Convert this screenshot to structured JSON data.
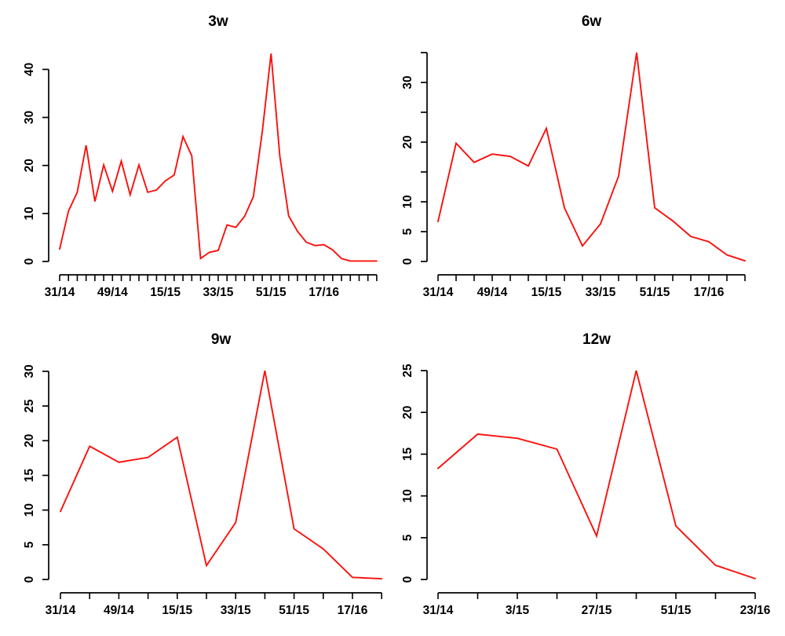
{
  "page": {
    "background": "#ffffff",
    "text_color": "#000000",
    "axis_color": "#000000"
  },
  "layout_hints": {
    "grid": "2x2",
    "gridlines": false,
    "legend": "none",
    "y_tick_labels_rotated": true
  },
  "chart_data": [
    {
      "type": "line",
      "title": "3w",
      "line_color": "#fb100c",
      "values": [
        2.6,
        10.5,
        14.4,
        24.2,
        12.5,
        20.1,
        14.6,
        20.9,
        13.9,
        20.1,
        14.4,
        14.9,
        16.8,
        18.0,
        26.0,
        22.0,
        0.6,
        1.9,
        2.3,
        7.6,
        7.1,
        9.4,
        13.5,
        27.0,
        43.3,
        21.9,
        9.5,
        6.3,
        4.0,
        3.3,
        3.5,
        2.4,
        0.6,
        0.1,
        0.1,
        0.1,
        0.1
      ],
      "x_axis": {
        "tick_count": 37,
        "labels": [
          {
            "at": 0,
            "text": "31/14"
          },
          {
            "at": 6,
            "text": "49/14"
          },
          {
            "at": 12,
            "text": "15/15"
          },
          {
            "at": 18,
            "text": "33/15"
          },
          {
            "at": 24,
            "text": "51/15"
          },
          {
            "at": 30,
            "text": "17/16"
          }
        ]
      },
      "y_axis": {
        "ticks": [
          0,
          10,
          20,
          30,
          40
        ],
        "labels": [
          "0",
          "10",
          "20",
          "30",
          "40"
        ]
      },
      "ylim": [
        0,
        43.5
      ]
    },
    {
      "type": "line",
      "title": "6w",
      "line_color": "#fb100c",
      "values": [
        6.7,
        19.8,
        16.6,
        18.0,
        17.6,
        16.0,
        22.3,
        9.0,
        2.6,
        6.3,
        14.3,
        35.0,
        9.0,
        6.8,
        4.2,
        3.3,
        1.1,
        0.1
      ],
      "x_axis": {
        "tick_count": 18,
        "labels": [
          {
            "at": 0,
            "text": "31/14"
          },
          {
            "at": 3,
            "text": "49/14"
          },
          {
            "at": 6,
            "text": "15/15"
          },
          {
            "at": 9,
            "text": "33/15"
          },
          {
            "at": 12,
            "text": "51/15"
          },
          {
            "at": 15,
            "text": "17/16"
          }
        ]
      },
      "y_axis": {
        "ticks": [
          0,
          5,
          10,
          15,
          20,
          25,
          30,
          35
        ],
        "labels": [
          "0",
          "5",
          "10",
          "",
          "20",
          "",
          "30",
          ""
        ]
      },
      "ylim": [
        0,
        35
      ]
    },
    {
      "type": "line",
      "title": "9w",
      "line_color": "#fb100c",
      "values": [
        9.8,
        19.2,
        16.9,
        17.6,
        20.5,
        2.0,
        8.2,
        30.1,
        7.3,
        4.4,
        0.3,
        0.1
      ],
      "x_axis": {
        "tick_count": 12,
        "labels": [
          {
            "at": 0,
            "text": "31/14"
          },
          {
            "at": 2,
            "text": "49/14"
          },
          {
            "at": 4,
            "text": "15/15"
          },
          {
            "at": 6,
            "text": "33/15"
          },
          {
            "at": 8,
            "text": "51/15"
          },
          {
            "at": 10,
            "text": "17/16"
          }
        ]
      },
      "y_axis": {
        "ticks": [
          0,
          5,
          10,
          15,
          20,
          25,
          30
        ],
        "labels": [
          "0",
          "5",
          "10",
          "15",
          "20",
          "25",
          "30"
        ]
      },
      "ylim": [
        0,
        30.1
      ]
    },
    {
      "type": "line",
      "title": "12w",
      "line_color": "#fb100c",
      "values": [
        13.3,
        17.4,
        16.9,
        15.6,
        5.2,
        25.0,
        6.4,
        1.7,
        0.1
      ],
      "x_axis": {
        "tick_count": 9,
        "labels": [
          {
            "at": 0,
            "text": "31/14"
          },
          {
            "at": 2,
            "text": "3/15"
          },
          {
            "at": 4,
            "text": "27/15"
          },
          {
            "at": 6,
            "text": "51/15"
          },
          {
            "at": 8,
            "text": "23/16"
          }
        ]
      },
      "y_axis": {
        "ticks": [
          0,
          5,
          10,
          15,
          20,
          25
        ],
        "labels": [
          "0",
          "5",
          "10",
          "15",
          "20",
          "25"
        ]
      },
      "ylim": [
        0,
        25
      ]
    }
  ]
}
